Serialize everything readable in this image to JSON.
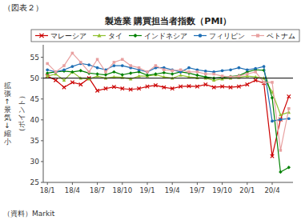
{
  "chart_data": {
    "type": "line",
    "title": "製造業 購買担当者指数（PMI）",
    "subtitle": "（図表２）",
    "ylabel": "（ポイント）",
    "annotations": [
      "拡\n張\n↑\n景\n気\n↓\n縮\n小",
      "（資料）Markit"
    ],
    "categories": [
      "18/1",
      null,
      null,
      "18/4",
      null,
      null,
      "18/7",
      null,
      null,
      "18/10",
      null,
      null,
      "19/1",
      null,
      null,
      "19/4",
      null,
      null,
      "19/7",
      null,
      null,
      "19/10",
      null,
      null,
      "20/1",
      null,
      null,
      "20/4",
      null,
      null
    ],
    "ylim": [
      25,
      58
    ],
    "yticks": [
      25,
      30,
      35,
      40,
      45,
      50,
      55
    ],
    "hline": 50,
    "grid": false,
    "legend": "top",
    "series": [
      {
        "name": "マレーシア",
        "color": "#cc0000",
        "marker": "x",
        "values": [
          50.5,
          49.5,
          47.8,
          49.0,
          48.5,
          50.0,
          47.0,
          47.5,
          47.9,
          47.5,
          47.3,
          47.5,
          48.0,
          48.3,
          47.8,
          47.5,
          48.0,
          48.1,
          48.0,
          48.5,
          47.8,
          48.0,
          47.8,
          48.0,
          48.5,
          49.5,
          48.8,
          31.3,
          40.1,
          45.6
        ]
      },
      {
        "name": "タイ",
        "color": "#90c030",
        "marker": "triangle",
        "values": [
          50.5,
          51.0,
          49.5,
          51.5,
          50.0,
          49.8,
          50.5,
          50.0,
          50.3,
          50.2,
          49.8,
          50.5,
          50.5,
          50.8,
          50.3,
          50.0,
          50.7,
          50.3,
          50.1,
          50.0,
          49.5,
          49.8,
          50.0,
          50.2,
          50.5,
          50.3,
          50.0,
          46.7,
          41.2,
          41.8
        ]
      },
      {
        "name": "インドネシア",
        "color": "#008000",
        "marker": "diamond",
        "values": [
          51.2,
          51.5,
          51.7,
          51.5,
          51.8,
          51.2,
          51.0,
          50.8,
          51.5,
          50.8,
          51.2,
          51.5,
          50.7,
          51.0,
          51.3,
          51.0,
          51.5,
          51.2,
          50.7,
          50.3,
          50.0,
          50.2,
          50.4,
          50.6,
          51.5,
          52.0,
          51.9,
          45.3,
          27.5,
          28.6
        ]
      },
      {
        "name": "フィリピン",
        "color": "#1e6eb4",
        "marker": "circle",
        "values": [
          52.0,
          51.5,
          52.0,
          52.8,
          53.5,
          53.2,
          52.5,
          52.0,
          53.0,
          53.0,
          52.5,
          52.0,
          51.5,
          52.5,
          52.5,
          52.0,
          51.5,
          52.5,
          52.0,
          51.7,
          51.5,
          51.8,
          52.0,
          52.5,
          52.0,
          52.3,
          52.8,
          39.7,
          40.1,
          40.3
        ]
      },
      {
        "name": "ベトナム",
        "color": "#e8a0a0",
        "marker": "square",
        "values": [
          53.5,
          51.5,
          53.0,
          56.0,
          53.8,
          51.5,
          54.5,
          51.5,
          53.8,
          54.5,
          53.0,
          52.5,
          51.5,
          53.0,
          52.0,
          51.8,
          52.0,
          51.5,
          51.5,
          51.0,
          51.0,
          50.5,
          50.3,
          50.5,
          51.0,
          51.5,
          49.0,
          49.0,
          32.7,
          42.7
        ]
      }
    ]
  }
}
